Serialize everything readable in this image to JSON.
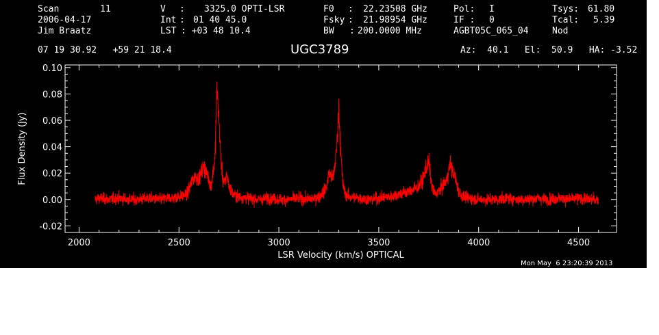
{
  "header": {
    "scan_label": "Scan",
    "scan_value": "11",
    "date": "2006-04-17",
    "observer": "Jim Braatz",
    "v_label": "V",
    "v_value": "3325.0 OPTI-LSR",
    "int_label": "Int",
    "int_value": "01 40 45.0",
    "lst_label": "LST",
    "lst_value": ": +03 48 10.4",
    "f0_label": "F0",
    "f0_value": "22.23508 GHz",
    "fsky_label": "Fsky",
    "fsky_value": "21.98954 GHz",
    "bw_label": "BW",
    "bw_value": "200.0000 MHz",
    "pol_label": "Pol:",
    "pol_value": "I",
    "if_label": "IF :",
    "if_value": "0",
    "project": "AGBT05C_065_04",
    "tsys_label": "Tsys:",
    "tsys_value": "61.80",
    "tcal_label": "Tcal:",
    "tcal_value": "5.39",
    "mode": "Nod",
    "coords": "07 19 30.92   +59 21 18.4",
    "source": "UGC3789",
    "az_el_ha": "Az:  40.1   El:  50.9   HA: -3.52",
    "timestamp": "Mon May  6 23:20:39 2013"
  },
  "colors": {
    "background": "#000000",
    "axes": "#ffffff",
    "spectrum": "#ff0000"
  },
  "chart_data": {
    "type": "line",
    "xlabel": "LSR Velocity (km/s) OPTICAL",
    "ylabel": "Flux Density (Jy)",
    "xlim": [
      1930,
      4690
    ],
    "ylim": [
      -0.025,
      0.102
    ],
    "xticks": [
      2000,
      2500,
      3000,
      3500,
      4000,
      4500
    ],
    "xtick_labels": [
      "2000",
      "2500",
      "3000",
      "3500",
      "4000",
      "4500"
    ],
    "yticks": [
      -0.02,
      0.0,
      0.02,
      0.04,
      0.06,
      0.08,
      0.1
    ],
    "ytick_labels": [
      "-0.02",
      "0.00",
      "0.02",
      "0.04",
      "0.06",
      "0.08",
      "0.10"
    ],
    "grid": false,
    "noise_rms": 0.003,
    "series": [
      {
        "x": [
          2080,
          2100,
          2150,
          2200,
          2250,
          2300,
          2350,
          2400,
          2450,
          2500,
          2540,
          2560,
          2580,
          2600,
          2620,
          2640,
          2660,
          2680,
          2690,
          2700,
          2710,
          2720,
          2730,
          2740,
          2750,
          2770,
          2800,
          2850,
          2900,
          2950,
          3000,
          3050,
          3100,
          3150,
          3200,
          3220,
          3240,
          3250,
          3260,
          3270,
          3280,
          3290,
          3300,
          3310,
          3320,
          3330,
          3350,
          3400,
          3450,
          3500,
          3550,
          3600,
          3650,
          3680,
          3700,
          3720,
          3740,
          3750,
          3760,
          3770,
          3780,
          3800,
          3820,
          3840,
          3860,
          3870,
          3880,
          3890,
          3900,
          3920,
          3950,
          4000,
          4050,
          4100,
          4150,
          4200,
          4250,
          4300,
          4350,
          4400,
          4450,
          4500,
          4550,
          4600
        ],
        "y": [
          0.0,
          0.001,
          0.0,
          0.001,
          0.0,
          0.0,
          0.001,
          0.0,
          0.001,
          0.002,
          0.004,
          0.012,
          0.018,
          0.015,
          0.025,
          0.02,
          0.01,
          0.03,
          0.085,
          0.06,
          0.03,
          0.015,
          0.012,
          0.02,
          0.01,
          0.004,
          0.002,
          0.001,
          0.0,
          0.001,
          0.0,
          0.0,
          0.001,
          0.0,
          0.002,
          0.005,
          0.01,
          0.02,
          0.018,
          0.015,
          0.025,
          0.04,
          0.07,
          0.035,
          0.012,
          0.005,
          0.002,
          0.001,
          0.0,
          0.001,
          0.002,
          0.004,
          0.006,
          0.008,
          0.01,
          0.015,
          0.025,
          0.03,
          0.015,
          0.008,
          0.004,
          0.006,
          0.01,
          0.015,
          0.028,
          0.02,
          0.018,
          0.012,
          0.006,
          0.002,
          0.001,
          0.0,
          0.0,
          0.0,
          0.001,
          0.0,
          0.0,
          0.001,
          0.0,
          0.001,
          0.0,
          0.001,
          0.0,
          0.0
        ]
      }
    ]
  }
}
